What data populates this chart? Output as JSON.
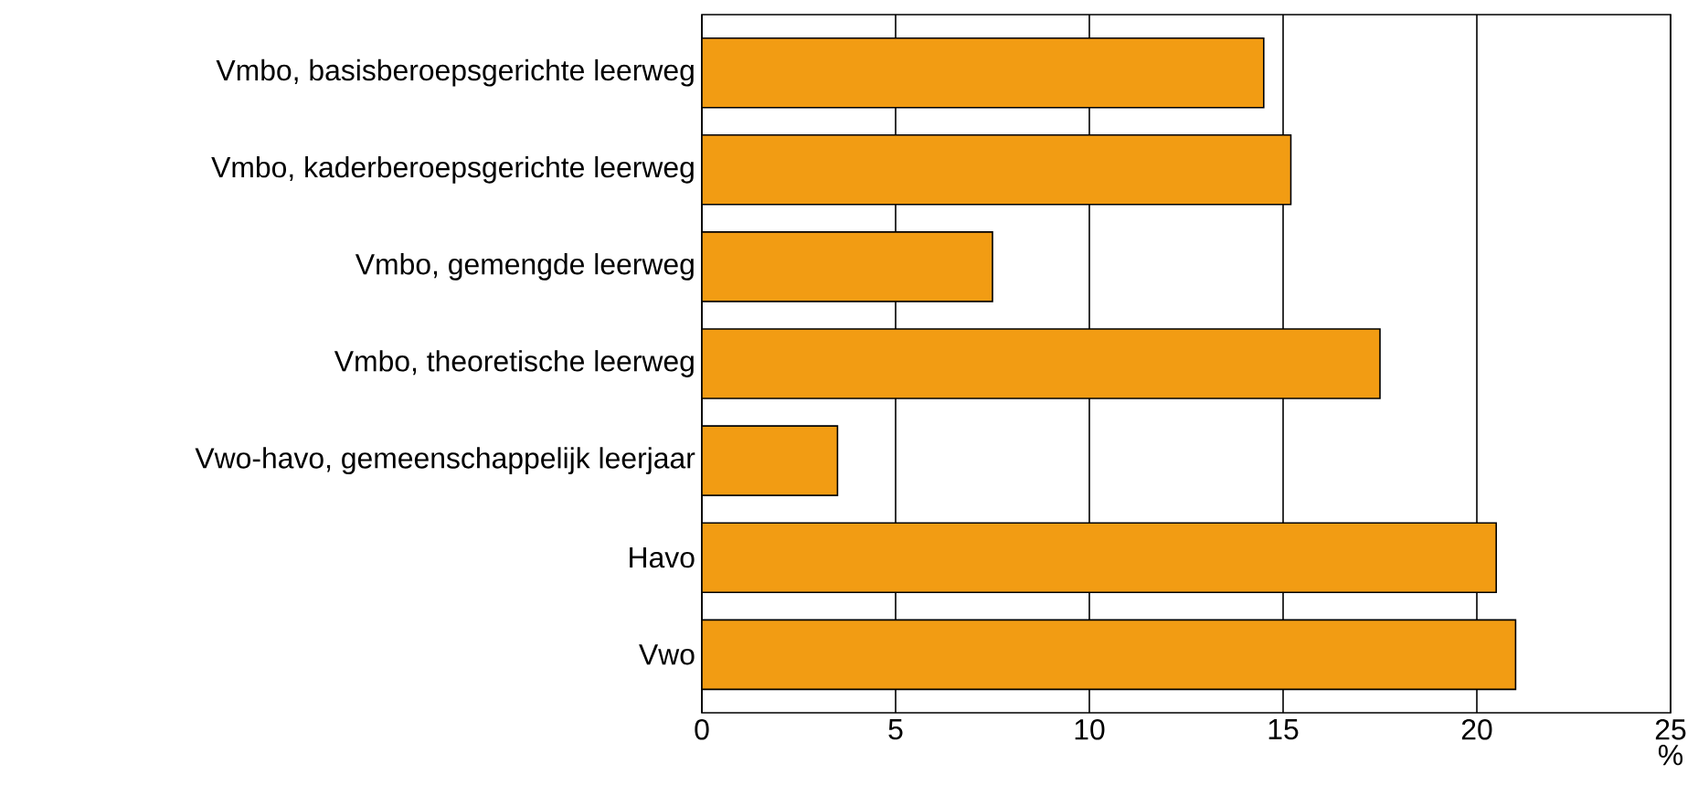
{
  "chart_data": {
    "type": "bar",
    "orientation": "horizontal",
    "xlabel": "%",
    "categories": [
      "Vmbo, basisberoepsgerichte leerweg",
      "Vmbo, kaderberoepsgerichte leerweg",
      "Vmbo, gemengde leerweg",
      "Vmbo, theoretische leerweg",
      "Vwo-havo, gemeenschappelijk leerjaar",
      "Havo",
      "Vwo"
    ],
    "values": [
      14.5,
      15.2,
      7.5,
      17.5,
      3.5,
      20.5,
      21.0
    ],
    "color": "#f29c13",
    "xlim": [
      0,
      25
    ],
    "xticks": [
      0,
      5,
      10,
      15,
      20,
      25
    ],
    "grid": "x"
  }
}
